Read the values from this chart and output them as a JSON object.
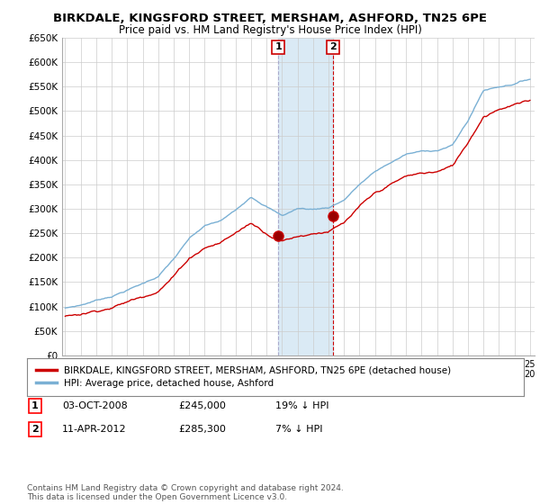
{
  "title": "BIRKDALE, KINGSFORD STREET, MERSHAM, ASHFORD, TN25 6PE",
  "subtitle": "Price paid vs. HM Land Registry's House Price Index (HPI)",
  "ylim": [
    0,
    650000
  ],
  "yticks": [
    0,
    50000,
    100000,
    150000,
    200000,
    250000,
    300000,
    350000,
    400000,
    450000,
    500000,
    550000,
    600000,
    650000
  ],
  "ytick_labels": [
    "£0",
    "£50K",
    "£100K",
    "£150K",
    "£200K",
    "£250K",
    "£300K",
    "£350K",
    "£400K",
    "£450K",
    "£500K",
    "£550K",
    "£600K",
    "£650K"
  ],
  "xlim_start": 1994.8,
  "xlim_end": 2025.3,
  "red_color": "#cc0000",
  "blue_color": "#7ab0d4",
  "shade_color": "#daeaf5",
  "point1_x": 2008.75,
  "point1_y": 245000,
  "point1_label": "1",
  "point2_x": 2012.28,
  "point2_y": 285300,
  "point2_label": "2",
  "legend_red": "BIRKDALE, KINGSFORD STREET, MERSHAM, ASHFORD, TN25 6PE (detached house)",
  "legend_blue": "HPI: Average price, detached house, Ashford",
  "table_row1": [
    "1",
    "03-OCT-2008",
    "£245,000",
    "19% ↓ HPI"
  ],
  "table_row2": [
    "2",
    "11-APR-2012",
    "£285,300",
    "7% ↓ HPI"
  ],
  "footer": "Contains HM Land Registry data © Crown copyright and database right 2024.\nThis data is licensed under the Open Government Licence v3.0.",
  "bg_color": "#ffffff",
  "grid_color": "#cccccc",
  "title_fontsize": 9.5,
  "subtitle_fontsize": 8.5,
  "hpi_base": {
    "1995": 97000,
    "1996": 103000,
    "1997": 113000,
    "1998": 122000,
    "1999": 135000,
    "2000": 148000,
    "2001": 163000,
    "2002": 198000,
    "2003": 238000,
    "2004": 263000,
    "2005": 272000,
    "2006": 293000,
    "2007": 323000,
    "2008": 305000,
    "2009": 285000,
    "2010": 300000,
    "2011": 298000,
    "2012": 302000,
    "2013": 318000,
    "2014": 350000,
    "2015": 375000,
    "2016": 393000,
    "2017": 410000,
    "2018": 415000,
    "2019": 418000,
    "2020": 428000,
    "2021": 478000,
    "2022": 540000,
    "2023": 548000,
    "2024": 555000,
    "2025": 565000
  },
  "red_base": {
    "1995": 80000,
    "1996": 85000,
    "1997": 93000,
    "1998": 101000,
    "1999": 112000,
    "2000": 123000,
    "2001": 138000,
    "2002": 168000,
    "2003": 205000,
    "2004": 228000,
    "2005": 238000,
    "2006": 258000,
    "2007": 278000,
    "2008": 258000,
    "2009": 245000,
    "2010": 255000,
    "2011": 262000,
    "2012": 268000,
    "2013": 282000,
    "2014": 312000,
    "2015": 336000,
    "2016": 353000,
    "2017": 368000,
    "2018": 373000,
    "2019": 376000,
    "2020": 386000,
    "2021": 435000,
    "2022": 490000,
    "2023": 508000,
    "2024": 518000,
    "2025": 522000
  }
}
